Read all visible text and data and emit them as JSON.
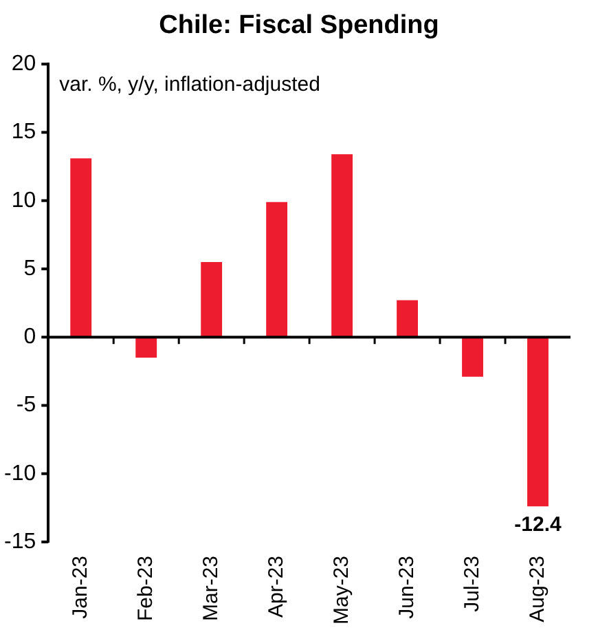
{
  "chart_data": {
    "type": "bar",
    "title": "Chile: Fiscal Spending",
    "subtitle": "var. %, y/y, inflation-adjusted",
    "categories": [
      "Jan-23",
      "Feb-23",
      "Mar-23",
      "Apr-23",
      "May-23",
      "Jun-23",
      "Jul-23",
      "Aug-23"
    ],
    "values": [
      13.1,
      -1.5,
      5.5,
      9.9,
      13.4,
      2.7,
      -2.9,
      -12.4
    ],
    "value_labels": [
      null,
      null,
      null,
      null,
      null,
      null,
      null,
      "-12.4"
    ],
    "color": "#ed1c2e",
    "ylim": [
      -15,
      20
    ],
    "yticks": [
      -15,
      -10,
      -5,
      0,
      5,
      10,
      15,
      20
    ],
    "legend": false
  }
}
